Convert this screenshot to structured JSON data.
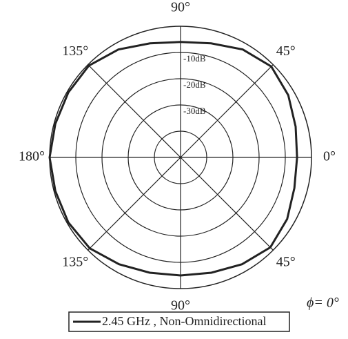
{
  "chart_data": {
    "type": "polar",
    "annotation": "ϕ= 0°",
    "rlim": [
      -50,
      0
    ],
    "rticks": [
      {
        "value": -10,
        "label": "-10dB"
      },
      {
        "value": -20,
        "label": "-20dB"
      },
      {
        "value": -30,
        "label": "-30dB"
      },
      {
        "value": -40,
        "label": null
      }
    ],
    "thetaticks": [
      {
        "value": 0,
        "label": "0°"
      },
      {
        "value": 45,
        "label": "45°"
      },
      {
        "value": 90,
        "label": "90°"
      },
      {
        "value": 135,
        "label": "135°"
      },
      {
        "value": 180,
        "label": "180°"
      },
      {
        "value": 225,
        "label": "135°"
      },
      {
        "value": 270,
        "label": "90°"
      },
      {
        "value": 315,
        "label": "45°"
      }
    ],
    "series": [
      {
        "name": "2.45 GHz , Non-Omnidirectional",
        "color": "#222222",
        "theta": [
          0,
          15,
          30,
          45,
          60,
          75,
          90,
          105,
          120,
          135,
          150,
          165,
          180,
          195,
          210,
          225,
          240,
          255,
          270,
          285,
          300,
          315,
          330,
          345
        ],
        "values": [
          -5.5,
          -4.5,
          -2.5,
          -1,
          -2.5,
          -5,
          -6,
          -5,
          -2.5,
          -0.5,
          -0.5,
          -0.5,
          0,
          -0.5,
          -0.5,
          -1,
          -3,
          -4.5,
          -5,
          -4.5,
          -3,
          -1.5,
          -3,
          -5
        ]
      }
    ]
  }
}
